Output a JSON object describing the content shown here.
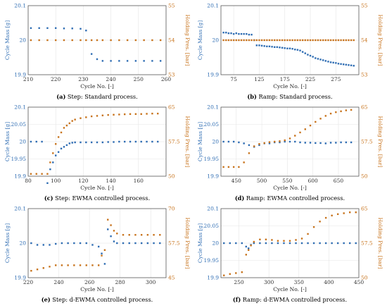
{
  "colors": {
    "mass": "#2f6db3",
    "pressure": "#c8741e",
    "grid": "#e6e6e6",
    "axis": "#444444"
  },
  "chart_data": [
    {
      "type": "scatter",
      "id": "a",
      "caption_label": "(a)",
      "caption_text": "Step: Standard process.",
      "xlabel": "Cycle No. [-]",
      "ylabel_left": "Cycle Mass [g]",
      "ylabel_right": "Holding Pres. [bar]",
      "xlim": [
        210,
        260
      ],
      "ylim_left": [
        19.9,
        20.1
      ],
      "ylim_right": [
        53,
        55
      ],
      "xticks": [
        210,
        220,
        230,
        240,
        250,
        260
      ],
      "yticks_left": [
        19.9,
        20,
        20.1
      ],
      "yticks_right": [
        53,
        54,
        55
      ],
      "series": [
        {
          "axis": "left",
          "color": "mass",
          "x": [
            211,
            214,
            217,
            220,
            223,
            226,
            229,
            231,
            233,
            235,
            237,
            240,
            243,
            246,
            249,
            252,
            255,
            258
          ],
          "y": [
            20.035,
            20.035,
            20.035,
            20.035,
            20.034,
            20.034,
            20.033,
            20.028,
            19.96,
            19.945,
            19.94,
            19.94,
            19.94,
            19.94,
            19.94,
            19.94,
            19.94,
            19.94
          ]
        },
        {
          "axis": "right",
          "color": "pressure",
          "x": [
            211,
            214,
            217,
            220,
            223,
            226,
            229,
            231,
            233,
            235,
            237,
            240,
            243,
            246,
            249,
            252,
            255,
            258
          ],
          "y": [
            54,
            54,
            54,
            54,
            54,
            54,
            54,
            54,
            54,
            54,
            54,
            54,
            54,
            54,
            54,
            54,
            54,
            54
          ]
        }
      ]
    },
    {
      "type": "scatter",
      "id": "b",
      "caption_label": "(b)",
      "caption_text": "Ramp: Standard process.",
      "xlabel": "Cycle No. [-]",
      "ylabel_left": "Cycle Mass [g]",
      "ylabel_right": "Holding Pres. [bar]",
      "xlim": [
        50,
        320
      ],
      "ylim_left": [
        19.9,
        20.1
      ],
      "ylim_right": [
        53,
        55
      ],
      "xticks": [
        75,
        125,
        175,
        225,
        275
      ],
      "yticks_left": [
        19.9,
        20,
        20.1
      ],
      "yticks_right": [
        53,
        54,
        55
      ],
      "series": [
        {
          "axis": "left",
          "color": "mass",
          "x": [
            55,
            60,
            65,
            70,
            75,
            80,
            85,
            90,
            95,
            100,
            105,
            110,
            115,
            120,
            125,
            130,
            135,
            140,
            145,
            150,
            155,
            160,
            165,
            170,
            175,
            180,
            185,
            190,
            195,
            200,
            205,
            210,
            215,
            220,
            225,
            230,
            235,
            240,
            245,
            250,
            255,
            260,
            265,
            270,
            275,
            280,
            285,
            290,
            295,
            300,
            305,
            310
          ],
          "y": [
            20.022,
            20.022,
            20.02,
            20.02,
            20.018,
            20.02,
            20.018,
            20.018,
            20.018,
            20.018,
            20.016,
            20.016,
            20.0,
            19.985,
            19.985,
            19.984,
            19.983,
            19.982,
            19.982,
            19.981,
            19.98,
            19.98,
            19.979,
            19.978,
            19.977,
            19.976,
            19.976,
            19.975,
            19.973,
            19.972,
            19.97,
            19.966,
            19.962,
            19.958,
            19.955,
            19.952,
            19.948,
            19.946,
            19.944,
            19.942,
            19.94,
            19.938,
            19.936,
            19.935,
            19.934,
            19.932,
            19.931,
            19.93,
            19.929,
            19.928,
            19.927,
            19.926
          ]
        },
        {
          "axis": "right",
          "color": "pressure",
          "x": [
            55,
            60,
            65,
            70,
            75,
            80,
            85,
            90,
            95,
            100,
            105,
            110,
            115,
            120,
            125,
            130,
            135,
            140,
            145,
            150,
            155,
            160,
            165,
            170,
            175,
            180,
            185,
            190,
            195,
            200,
            205,
            210,
            215,
            220,
            225,
            230,
            235,
            240,
            245,
            250,
            255,
            260,
            265,
            270,
            275,
            280,
            285,
            290,
            295,
            300,
            305,
            310
          ],
          "y": [
            54,
            54,
            54,
            54,
            54,
            54,
            54,
            54,
            54,
            54,
            54,
            54,
            54,
            54,
            54,
            54,
            54,
            54,
            54,
            54,
            54,
            54,
            54,
            54,
            54,
            54,
            54,
            54,
            54,
            54,
            54,
            54,
            54,
            54,
            54,
            54,
            54,
            54,
            54,
            54,
            54,
            54,
            54,
            54,
            54,
            54,
            54,
            54,
            54,
            54,
            54,
            54
          ]
        }
      ]
    },
    {
      "type": "scatter",
      "id": "c",
      "caption_label": "(c)",
      "caption_text": "Step: EWMA controlled process.",
      "xlabel": "Cycle No. [-]",
      "ylabel_left": "Cycle Mass [g]",
      "ylabel_right": "Holding Pres. [bar]",
      "xlim": [
        80,
        180
      ],
      "ylim_left": [
        19.9,
        20.1
      ],
      "ylim_right": [
        50,
        65
      ],
      "xticks": [
        80,
        100,
        120,
        140,
        160
      ],
      "yticks_left": [
        19.9,
        19.95,
        20,
        20.05,
        20.1
      ],
      "yticks_right": [
        50,
        57.5,
        65
      ],
      "series": [
        {
          "axis": "left",
          "color": "mass",
          "x": [
            82,
            86,
            90,
            94,
            96,
            98,
            100,
            102,
            104,
            106,
            108,
            110,
            112,
            114,
            118,
            122,
            126,
            130,
            134,
            138,
            142,
            146,
            150,
            154,
            158,
            162,
            166,
            170,
            174
          ],
          "y": [
            20.0,
            20.0,
            20.0,
            19.88,
            19.92,
            19.94,
            19.96,
            19.97,
            19.98,
            19.985,
            19.99,
            19.995,
            19.997,
            19.998,
            19.998,
            19.998,
            19.998,
            19.998,
            19.998,
            19.999,
            19.999,
            20.0,
            20.0,
            20.0,
            20.0,
            20.0,
            20.0,
            20.0,
            20.0
          ]
        },
        {
          "axis": "right",
          "color": "pressure",
          "x": [
            82,
            86,
            90,
            94,
            96,
            98,
            100,
            102,
            104,
            106,
            108,
            110,
            112,
            114,
            118,
            122,
            126,
            130,
            134,
            138,
            142,
            146,
            150,
            154,
            158,
            162,
            166,
            170,
            174
          ],
          "y": [
            50.5,
            50.5,
            50.5,
            50.5,
            53,
            55,
            57,
            58.5,
            59.5,
            60.5,
            61,
            61.5,
            62,
            62.3,
            62.6,
            62.8,
            63,
            63.1,
            63.2,
            63.3,
            63.35,
            63.4,
            63.45,
            63.5,
            63.5,
            63.5,
            63.55,
            63.6,
            63.6
          ]
        }
      ]
    },
    {
      "type": "scatter",
      "id": "d",
      "caption_label": "(d)",
      "caption_text": "Ramp: EWMA controlled process.",
      "xlabel": "Cycle No. [-]",
      "ylabel_left": "Cycle Mass [g]",
      "ylabel_right": "Holding Pres. [bar]",
      "xlim": [
        420,
        690
      ],
      "ylim_left": [
        19.9,
        20.1
      ],
      "ylim_right": [
        50,
        65
      ],
      "xticks": [
        450,
        500,
        550,
        600,
        650
      ],
      "yticks_left": [
        19.9,
        19.95,
        20,
        20.05,
        20.1
      ],
      "yticks_right": [
        50,
        57.5,
        65
      ],
      "series": [
        {
          "axis": "left",
          "color": "mass",
          "x": [
            425,
            435,
            445,
            455,
            465,
            475,
            485,
            495,
            505,
            515,
            525,
            535,
            545,
            555,
            565,
            575,
            585,
            595,
            605,
            615,
            625,
            635,
            645,
            655,
            665,
            675
          ],
          "y": [
            20.0,
            20.0,
            20.0,
            19.998,
            19.995,
            19.99,
            19.985,
            19.99,
            19.995,
            19.995,
            19.998,
            19.998,
            20.0,
            20.0,
            20.0,
            19.998,
            19.997,
            19.997,
            19.996,
            19.996,
            19.995,
            19.997,
            19.997,
            19.998,
            19.998,
            19.998
          ]
        },
        {
          "axis": "right",
          "color": "pressure",
          "x": [
            425,
            435,
            445,
            455,
            465,
            475,
            485,
            495,
            505,
            515,
            525,
            535,
            545,
            555,
            565,
            575,
            585,
            595,
            605,
            615,
            625,
            635,
            645,
            655,
            665,
            675
          ],
          "y": [
            52,
            52,
            52,
            52,
            53,
            55,
            56.5,
            57,
            57.2,
            57.4,
            57.5,
            57.6,
            57.8,
            58.2,
            58.8,
            59.5,
            60.2,
            61,
            61.8,
            62.5,
            63.1,
            63.6,
            63.9,
            64.1,
            64.3,
            64.4
          ]
        }
      ]
    },
    {
      "type": "scatter",
      "id": "e",
      "caption_label": "(e)",
      "caption_text": "Step: d-EWMA controlled process.",
      "xlabel": "Cycle No. [-]",
      "ylabel_left": "Cycle Mass [g]",
      "ylabel_right": "Holding Pres. [bar]",
      "xlim": [
        220,
        310
      ],
      "ylim_left": [
        19.9,
        20.1
      ],
      "ylim_right": [
        45,
        70
      ],
      "xticks": [
        220,
        240,
        260,
        280,
        300
      ],
      "yticks_left": [
        19.9,
        20,
        20.1
      ],
      "yticks_right": [
        45,
        57.5,
        70
      ],
      "series": [
        {
          "axis": "left",
          "color": "mass",
          "x": [
            222,
            226,
            230,
            234,
            238,
            242,
            246,
            250,
            254,
            258,
            262,
            266,
            268,
            270,
            272,
            274,
            276,
            278,
            282,
            286,
            290,
            294,
            298,
            302,
            306
          ],
          "y": [
            20.0,
            19.995,
            19.995,
            19.995,
            19.998,
            20.0,
            20.0,
            20.0,
            20.0,
            20.0,
            19.995,
            19.99,
            19.97,
            19.94,
            20.04,
            20.02,
            20.005,
            20.0,
            20.0,
            20.0,
            20.0,
            20.0,
            20.0,
            20.0,
            20.0
          ]
        },
        {
          "axis": "right",
          "color": "pressure",
          "x": [
            222,
            226,
            230,
            234,
            238,
            242,
            246,
            250,
            254,
            258,
            262,
            266,
            268,
            270,
            272,
            274,
            276,
            278,
            282,
            286,
            290,
            294,
            298,
            302,
            306
          ],
          "y": [
            47.5,
            48,
            48.5,
            49,
            49.5,
            49.5,
            49.5,
            49.5,
            49.5,
            49.5,
            49.5,
            49.5,
            53,
            55,
            66,
            64,
            62,
            61,
            60.5,
            60.5,
            60.5,
            60.5,
            60.5,
            60.5,
            60.5
          ]
        }
      ]
    },
    {
      "type": "scatter",
      "id": "f",
      "caption_label": "(f)",
      "caption_text": "Ramp: d-EWMA controlled process.",
      "xlabel": "Cycle No. [-]",
      "ylabel_left": "Cycle Mass [g]",
      "ylabel_right": "Holding Pres. [bar]",
      "xlim": [
        220,
        450
      ],
      "ylim_left": [
        19.9,
        20.1
      ],
      "ylim_right": [
        50,
        65
      ],
      "xticks": [
        250,
        300,
        350,
        400,
        450
      ],
      "yticks_left": [
        19.9,
        19.95,
        20,
        20.05,
        20.1
      ],
      "yticks_right": [
        50,
        57.5,
        65
      ],
      "series": [
        {
          "axis": "left",
          "color": "mass",
          "x": [
            225,
            235,
            245,
            255,
            262,
            266,
            270,
            275,
            285,
            295,
            305,
            315,
            325,
            335,
            345,
            355,
            365,
            375,
            385,
            395,
            405,
            415,
            425,
            435,
            445
          ],
          "y": [
            20.0,
            20.0,
            20.0,
            20.0,
            19.99,
            19.985,
            19.995,
            20.0,
            20.0,
            20.0,
            20.0,
            20.0,
            20.0,
            20.0,
            20.0,
            20.0,
            20.0,
            20.0,
            20.0,
            20.0,
            20.0,
            20.0,
            20.0,
            20.0,
            20.0
          ]
        },
        {
          "axis": "right",
          "color": "pressure",
          "x": [
            225,
            235,
            245,
            255,
            262,
            266,
            270,
            275,
            285,
            295,
            305,
            315,
            325,
            335,
            345,
            355,
            365,
            375,
            385,
            395,
            405,
            415,
            425,
            435,
            445
          ],
          "y": [
            50.5,
            50.8,
            51,
            51.2,
            55,
            56,
            57,
            57.8,
            58.3,
            58.3,
            58.2,
            58,
            58,
            58,
            58.2,
            58.5,
            59.5,
            61,
            62.2,
            63,
            63.5,
            63.8,
            64,
            64.2,
            64.2
          ]
        }
      ]
    }
  ]
}
